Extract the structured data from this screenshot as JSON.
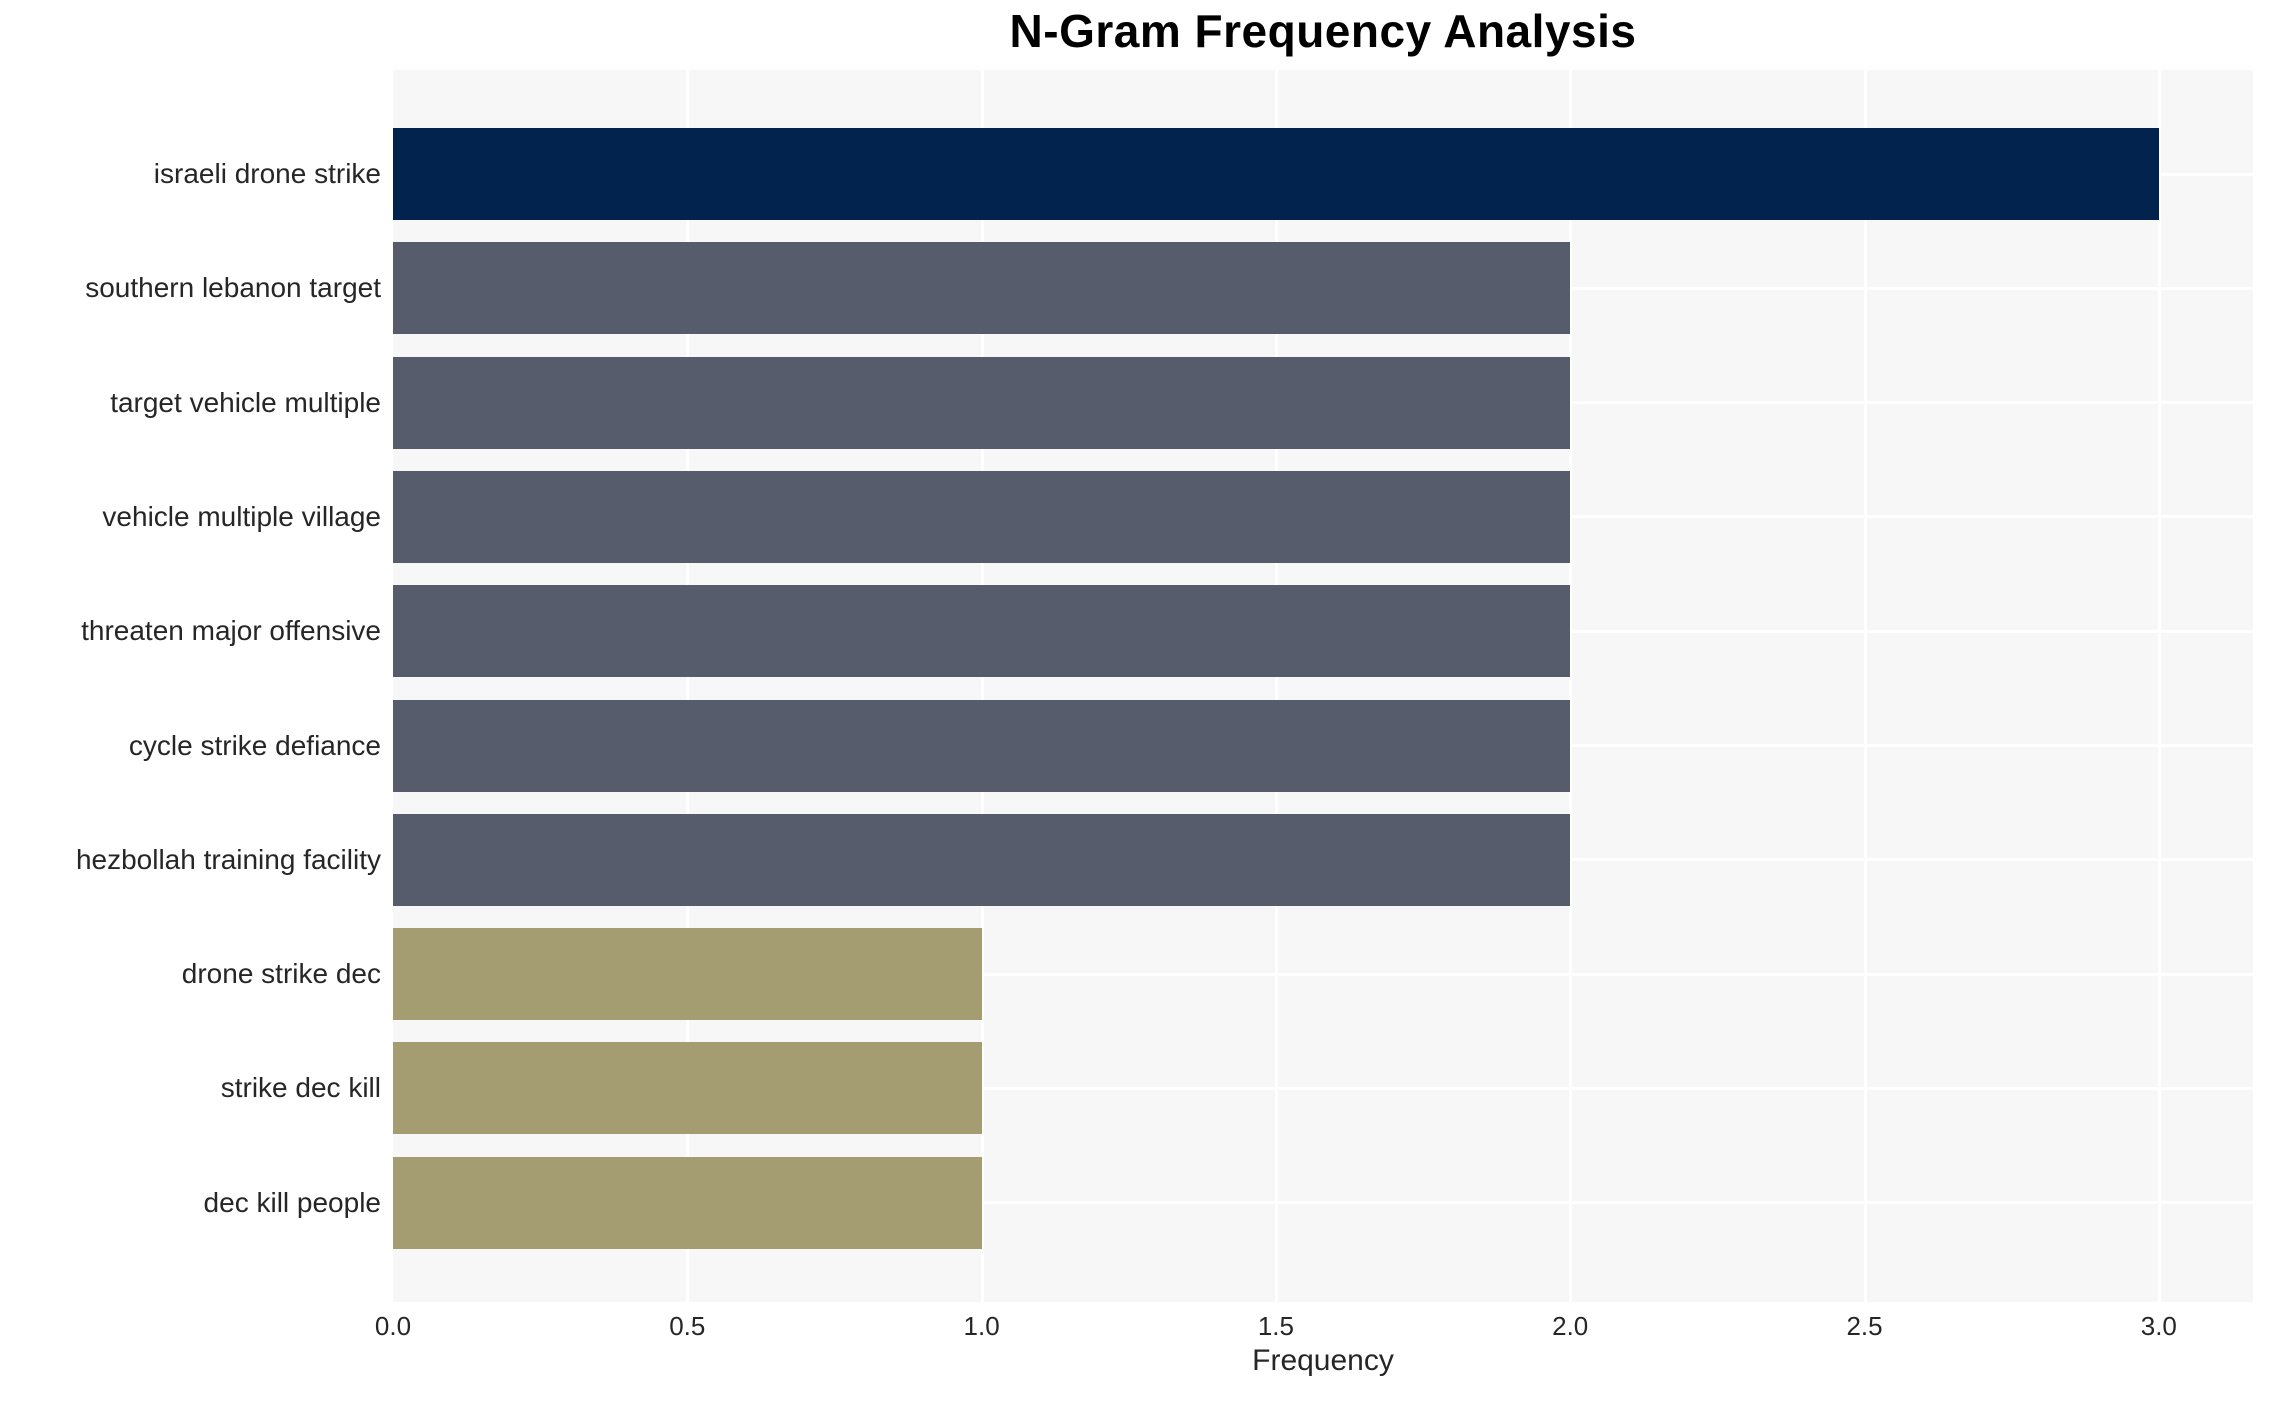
{
  "chart": {
    "title": "N-Gram Frequency Analysis",
    "xlabel": "Frequency"
  },
  "chart_data": {
    "type": "bar",
    "orientation": "horizontal",
    "title": "N-Gram Frequency Analysis",
    "xlabel": "Frequency",
    "ylabel": "",
    "categories": [
      "israeli drone strike",
      "southern lebanon target",
      "target vehicle multiple",
      "vehicle multiple village",
      "threaten major offensive",
      "cycle strike defiance",
      "hezbollah training facility",
      "drone strike dec",
      "strike dec kill",
      "dec kill people"
    ],
    "values": [
      3,
      2,
      2,
      2,
      2,
      2,
      2,
      1,
      1,
      1
    ],
    "bar_colors": [
      "#02234d",
      "#565c6b",
      "#565c6b",
      "#565c6b",
      "#565c6b",
      "#565c6b",
      "#565c6b",
      "#a49d72",
      "#a49d72",
      "#a49d72"
    ],
    "xticks": [
      0.0,
      0.5,
      1.0,
      1.5,
      2.0,
      2.5,
      3.0
    ],
    "xtick_labels": [
      "0.0",
      "0.5",
      "1.0",
      "1.5",
      "2.0",
      "2.5",
      "3.0"
    ],
    "xlim": [
      0,
      3.16
    ],
    "grid": true,
    "legend": false,
    "colors": {
      "plot_background": "#f7f7f7",
      "gridline": "#ffffff",
      "text": "#262626",
      "title_text": "#000000"
    }
  }
}
